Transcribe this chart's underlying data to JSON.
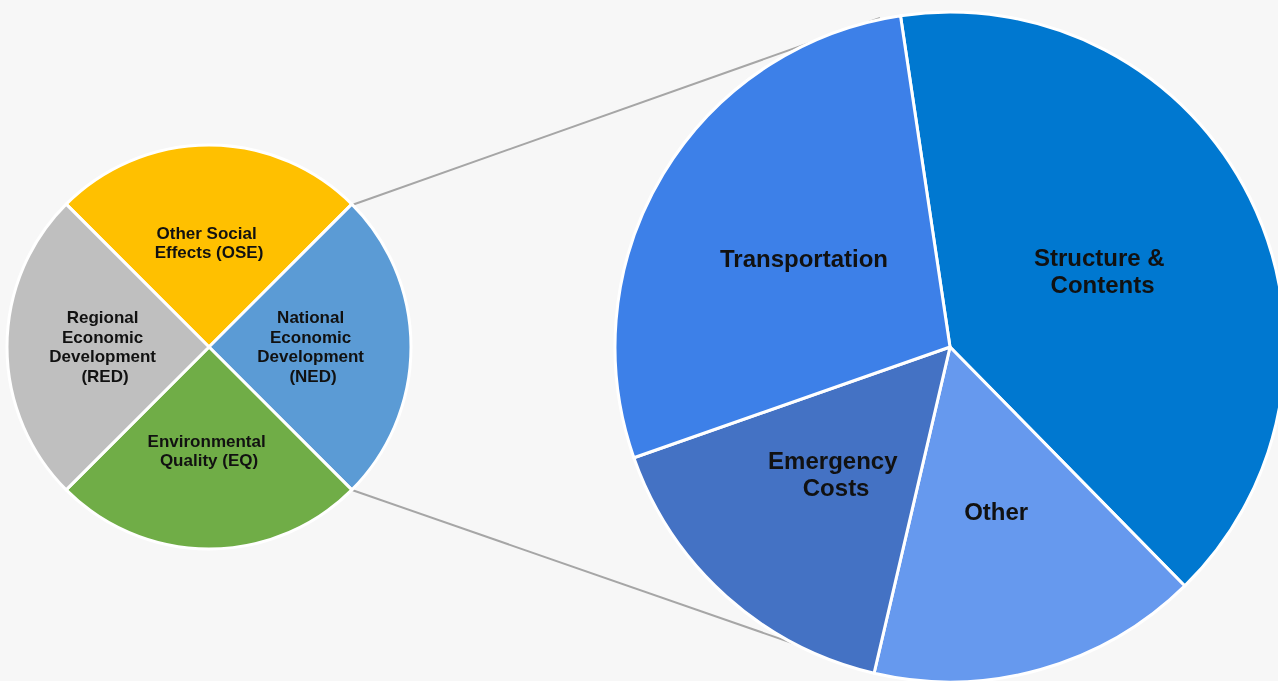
{
  "chart_data": [
    {
      "type": "pie",
      "categories": [
        "Other Social Effects (OSE)",
        "National Economic Development (NED)",
        "Environmental Quality (EQ)",
        "Regional Economic Development (RED)"
      ],
      "values": [
        25,
        25,
        25,
        25
      ],
      "colors": [
        "#ffc000",
        "#5b9bd5",
        "#70ad47",
        "#bfbfbf"
      ]
    },
    {
      "type": "pie",
      "categories": [
        "Structure & Contents",
        "Other",
        "Emergency Costs",
        "Transportation"
      ],
      "values": [
        40,
        16,
        16,
        28
      ],
      "colors": [
        "#0078d0",
        "#6699ee",
        "#4472c4",
        "#3d80e8"
      ]
    }
  ]
}
